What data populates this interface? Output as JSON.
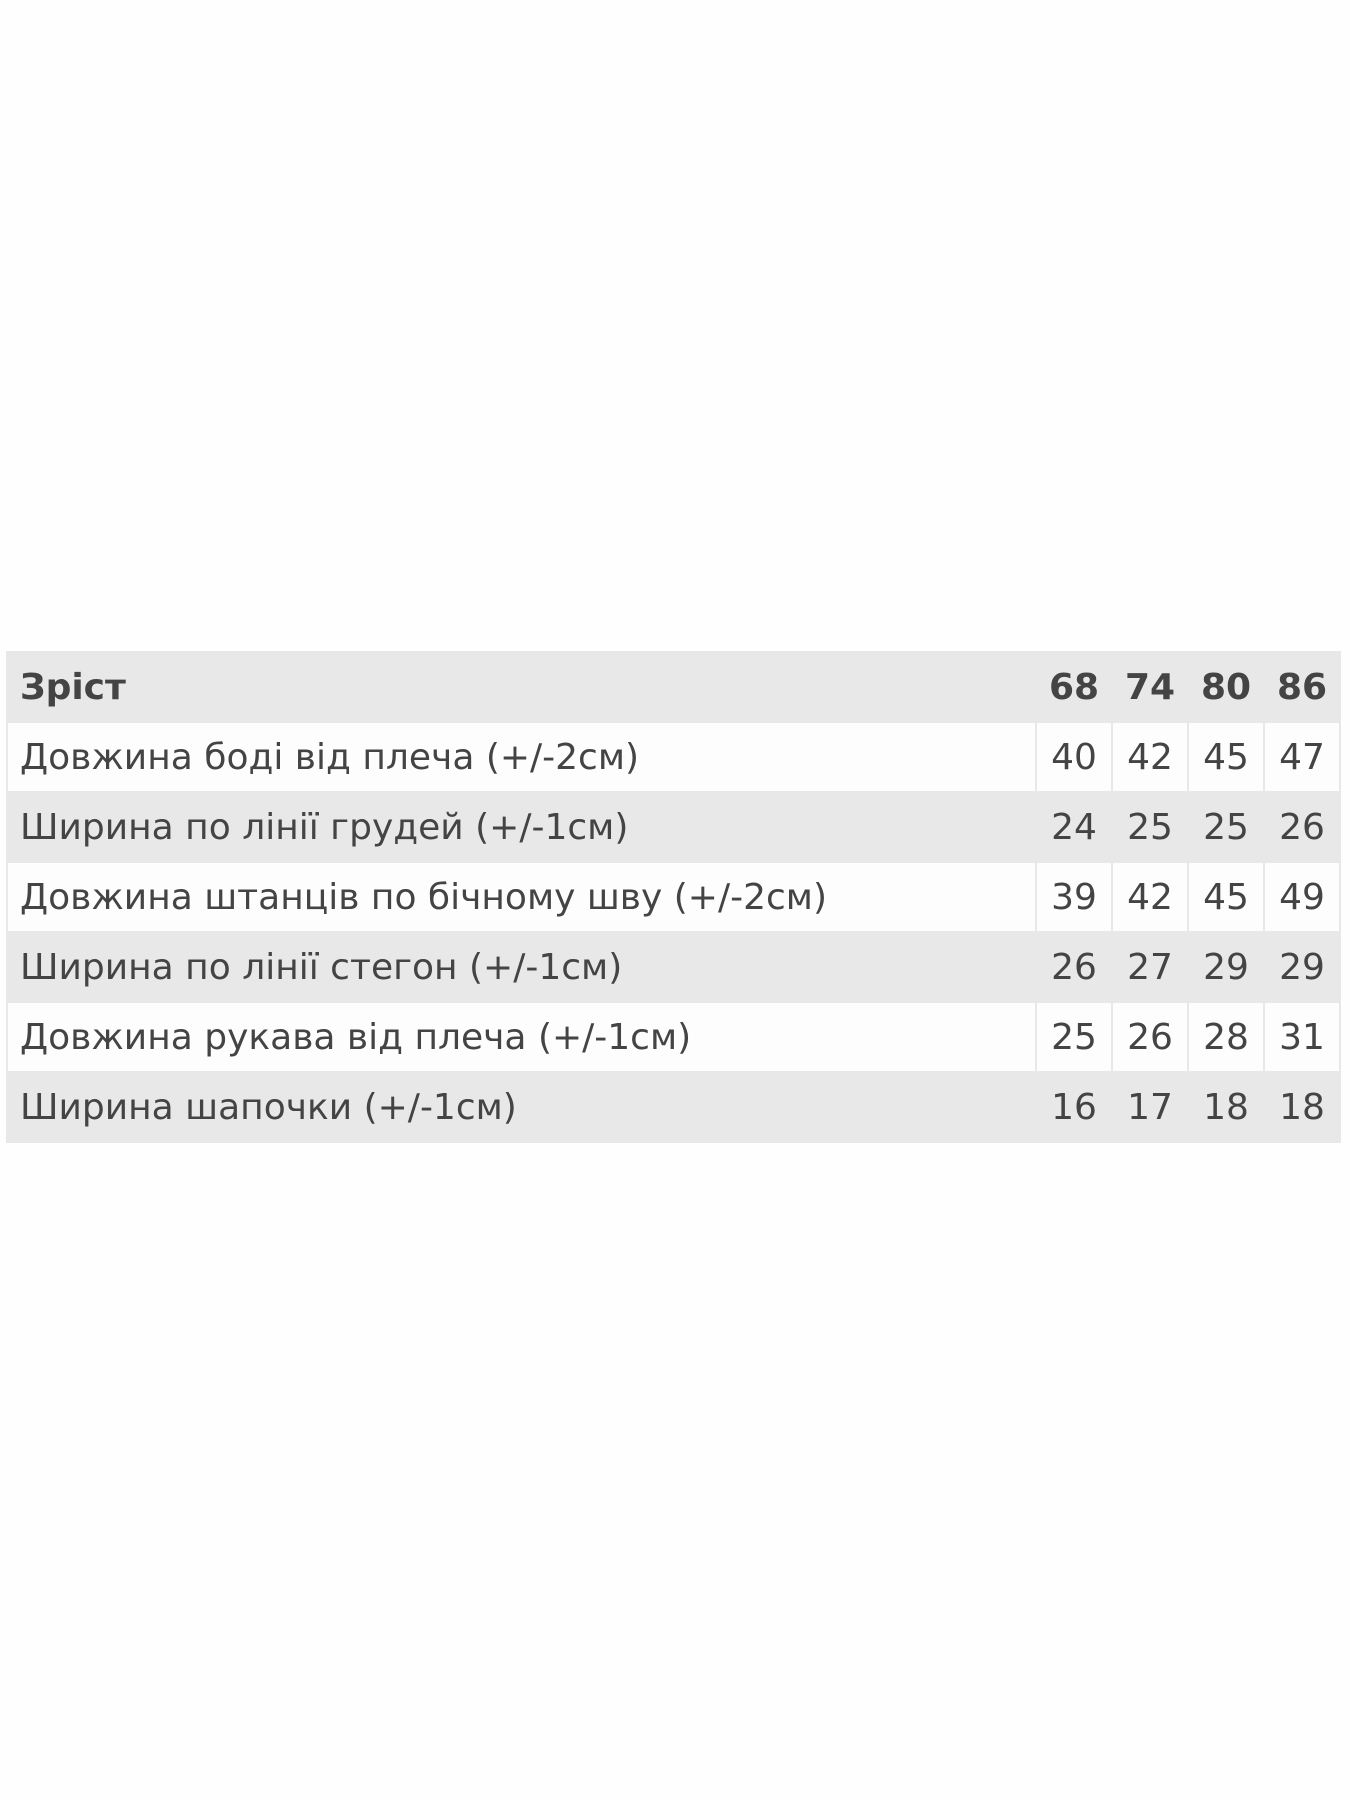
{
  "table": {
    "header": [
      "Зріст",
      68,
      74,
      80,
      86
    ],
    "rows": [
      [
        "Довжина боді від плеча (+/-2см)",
        40,
        42,
        45,
        47
      ],
      [
        "Ширина по лінії грудей (+/-1см)",
        24,
        25,
        25,
        26
      ],
      [
        "Довжина штанців по бічному шву (+/-2см)",
        39,
        42,
        45,
        49
      ],
      [
        "Ширина по лінії стегон (+/-1см)",
        26,
        27,
        29,
        29
      ],
      [
        "Довжина рукава від плеча (+/-1см)",
        25,
        26,
        28,
        31
      ],
      [
        "Ширина шапочки (+/-1см)",
        16,
        17,
        18,
        18
      ]
    ]
  }
}
